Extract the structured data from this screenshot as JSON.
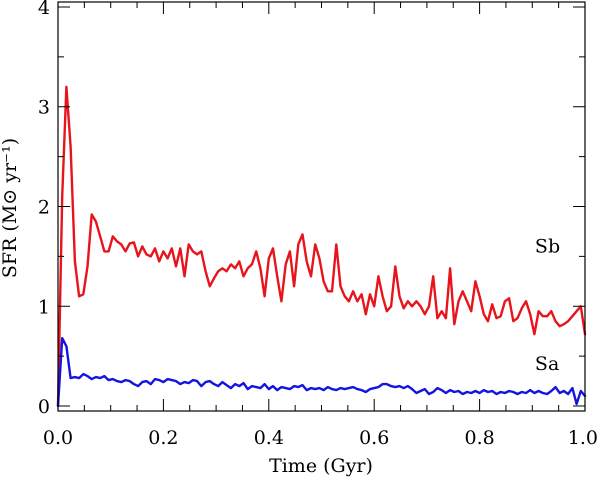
{
  "chart_data": {
    "type": "line",
    "xlabel": "Time (Gyr)",
    "ylabel": "SFR (M⊙ yr⁻¹)",
    "xlim": [
      0.0,
      1.0
    ],
    "ylim": [
      -0.05,
      4.05
    ],
    "x_ticks": [
      "0.0",
      "0.2",
      "0.4",
      "0.6",
      "0.8",
      "1.0"
    ],
    "y_ticks": [
      "0",
      "1",
      "2",
      "3",
      "4"
    ],
    "grid": false,
    "series": [
      {
        "name": "Sb",
        "color": "#e8141c",
        "x": [
          0.0,
          0.008,
          0.016,
          0.024,
          0.032,
          0.04,
          0.048,
          0.056,
          0.064,
          0.072,
          0.08,
          0.088,
          0.096,
          0.104,
          0.112,
          0.12,
          0.128,
          0.136,
          0.144,
          0.152,
          0.16,
          0.168,
          0.176,
          0.184,
          0.192,
          0.2,
          0.208,
          0.216,
          0.224,
          0.232,
          0.24,
          0.248,
          0.256,
          0.264,
          0.272,
          0.28,
          0.288,
          0.296,
          0.304,
          0.312,
          0.32,
          0.328,
          0.336,
          0.344,
          0.352,
          0.36,
          0.368,
          0.376,
          0.384,
          0.392,
          0.4,
          0.408,
          0.416,
          0.424,
          0.432,
          0.44,
          0.448,
          0.456,
          0.464,
          0.472,
          0.48,
          0.488,
          0.496,
          0.504,
          0.512,
          0.52,
          0.528,
          0.536,
          0.544,
          0.552,
          0.56,
          0.568,
          0.576,
          0.584,
          0.592,
          0.6,
          0.608,
          0.616,
          0.624,
          0.632,
          0.64,
          0.648,
          0.656,
          0.664,
          0.672,
          0.68,
          0.688,
          0.696,
          0.704,
          0.712,
          0.72,
          0.728,
          0.736,
          0.744,
          0.752,
          0.76,
          0.768,
          0.776,
          0.784,
          0.792,
          0.8,
          0.808,
          0.816,
          0.824,
          0.832,
          0.84,
          0.848,
          0.856,
          0.864,
          0.872,
          0.88,
          0.888,
          0.896,
          0.904,
          0.912,
          0.92,
          0.928,
          0.936,
          0.944,
          0.952,
          0.96,
          0.968,
          0.976,
          0.984,
          0.992,
          1.0
        ],
        "y": [
          0.0,
          2.1,
          3.2,
          2.6,
          1.45,
          1.1,
          1.12,
          1.4,
          1.92,
          1.85,
          1.7,
          1.55,
          1.55,
          1.7,
          1.65,
          1.62,
          1.55,
          1.63,
          1.64,
          1.5,
          1.6,
          1.52,
          1.5,
          1.58,
          1.45,
          1.55,
          1.48,
          1.58,
          1.4,
          1.58,
          1.3,
          1.62,
          1.55,
          1.52,
          1.55,
          1.35,
          1.2,
          1.28,
          1.35,
          1.38,
          1.35,
          1.42,
          1.38,
          1.45,
          1.3,
          1.38,
          1.42,
          1.55,
          1.38,
          1.1,
          1.48,
          1.58,
          1.3,
          1.05,
          1.42,
          1.55,
          1.2,
          1.62,
          1.72,
          1.45,
          1.3,
          1.62,
          1.48,
          1.25,
          1.15,
          1.15,
          1.62,
          1.2,
          1.1,
          1.05,
          1.15,
          1.05,
          1.12,
          0.92,
          1.12,
          1.0,
          1.3,
          1.1,
          0.95,
          1.0,
          1.4,
          1.1,
          0.98,
          1.05,
          1.0,
          1.05,
          1.0,
          0.92,
          1.0,
          1.3,
          0.88,
          0.95,
          0.88,
          1.38,
          0.82,
          1.05,
          1.15,
          1.05,
          0.95,
          1.25,
          1.1,
          0.92,
          0.85,
          1.02,
          0.88,
          0.9,
          1.05,
          1.08,
          0.85,
          0.88,
          0.98,
          1.05,
          0.92,
          0.72,
          0.95,
          0.9,
          0.9,
          0.95,
          0.85,
          0.8,
          0.82,
          0.85,
          0.9,
          0.95,
          1.0,
          0.72
        ]
      },
      {
        "name": "Sa",
        "color": "#1414e0",
        "x": [
          0.0,
          0.008,
          0.016,
          0.024,
          0.032,
          0.04,
          0.048,
          0.056,
          0.064,
          0.072,
          0.08,
          0.088,
          0.096,
          0.104,
          0.112,
          0.12,
          0.128,
          0.136,
          0.144,
          0.152,
          0.16,
          0.168,
          0.176,
          0.184,
          0.192,
          0.2,
          0.208,
          0.216,
          0.224,
          0.232,
          0.24,
          0.248,
          0.256,
          0.264,
          0.272,
          0.28,
          0.288,
          0.296,
          0.304,
          0.312,
          0.32,
          0.328,
          0.336,
          0.344,
          0.352,
          0.36,
          0.368,
          0.376,
          0.384,
          0.392,
          0.4,
          0.408,
          0.416,
          0.424,
          0.432,
          0.44,
          0.448,
          0.456,
          0.464,
          0.472,
          0.48,
          0.488,
          0.496,
          0.504,
          0.512,
          0.52,
          0.528,
          0.536,
          0.544,
          0.552,
          0.56,
          0.568,
          0.576,
          0.584,
          0.592,
          0.6,
          0.608,
          0.616,
          0.624,
          0.632,
          0.64,
          0.648,
          0.656,
          0.664,
          0.672,
          0.68,
          0.688,
          0.696,
          0.704,
          0.712,
          0.72,
          0.728,
          0.736,
          0.744,
          0.752,
          0.76,
          0.768,
          0.776,
          0.784,
          0.792,
          0.8,
          0.808,
          0.816,
          0.824,
          0.832,
          0.84,
          0.848,
          0.856,
          0.864,
          0.872,
          0.88,
          0.888,
          0.896,
          0.904,
          0.912,
          0.92,
          0.928,
          0.936,
          0.944,
          0.952,
          0.96,
          0.968,
          0.976,
          0.984,
          0.992,
          1.0
        ],
        "y": [
          0.0,
          0.68,
          0.6,
          0.28,
          0.29,
          0.28,
          0.32,
          0.3,
          0.27,
          0.29,
          0.28,
          0.3,
          0.26,
          0.27,
          0.25,
          0.24,
          0.26,
          0.25,
          0.22,
          0.2,
          0.24,
          0.25,
          0.22,
          0.27,
          0.26,
          0.24,
          0.27,
          0.26,
          0.25,
          0.22,
          0.24,
          0.23,
          0.26,
          0.25,
          0.2,
          0.24,
          0.25,
          0.22,
          0.2,
          0.24,
          0.21,
          0.18,
          0.22,
          0.2,
          0.23,
          0.17,
          0.2,
          0.19,
          0.18,
          0.22,
          0.17,
          0.2,
          0.16,
          0.19,
          0.18,
          0.17,
          0.2,
          0.19,
          0.21,
          0.16,
          0.18,
          0.17,
          0.18,
          0.16,
          0.19,
          0.17,
          0.16,
          0.18,
          0.17,
          0.18,
          0.19,
          0.17,
          0.16,
          0.14,
          0.17,
          0.18,
          0.19,
          0.22,
          0.22,
          0.2,
          0.19,
          0.2,
          0.18,
          0.2,
          0.17,
          0.13,
          0.15,
          0.17,
          0.12,
          0.14,
          0.18,
          0.16,
          0.13,
          0.16,
          0.14,
          0.15,
          0.12,
          0.14,
          0.13,
          0.15,
          0.13,
          0.16,
          0.14,
          0.15,
          0.12,
          0.14,
          0.13,
          0.15,
          0.14,
          0.12,
          0.14,
          0.13,
          0.16,
          0.13,
          0.15,
          0.13,
          0.12,
          0.15,
          0.19,
          0.13,
          0.15,
          0.12,
          0.18,
          0.02,
          0.15,
          0.1
        ]
      }
    ]
  }
}
